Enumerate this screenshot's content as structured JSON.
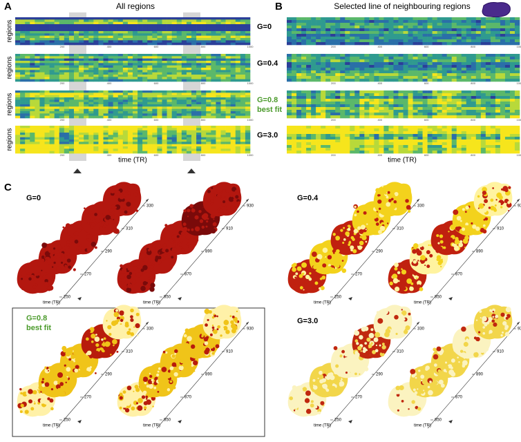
{
  "panel_a": {
    "label": "A",
    "title": "All regions",
    "ylabel": "regions",
    "xlabel": "time (TR)",
    "xticks": [
      200,
      400,
      600,
      800,
      1000
    ],
    "rows": [
      {
        "g": "G=0"
      },
      {
        "g": "G=0.4"
      },
      {
        "g": "G=0.8",
        "note": "best fit"
      },
      {
        "g": "G=3.0"
      }
    ]
  },
  "panel_b": {
    "label": "B",
    "title": "Selected line of neighbouring regions",
    "xlabel": "time (TR)",
    "xticks": [
      200,
      400,
      600,
      800,
      1000
    ]
  },
  "panel_c": {
    "label": "C",
    "xlabel": "time (TR)",
    "groups": [
      {
        "g": "G=0"
      },
      {
        "g": "G=0.4"
      },
      {
        "g": "G=0.8",
        "note": "best fit"
      },
      {
        "g": "G=3.0"
      }
    ],
    "sequences": [
      [
        250,
        270,
        290,
        310,
        330
      ],
      [
        850,
        870,
        890,
        910,
        930
      ]
    ]
  }
}
